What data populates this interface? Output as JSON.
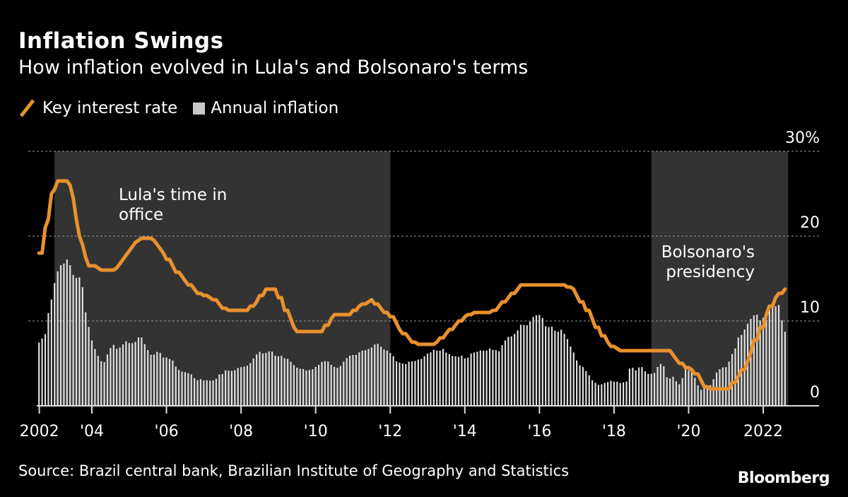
{
  "title": "Inflation Swings",
  "subtitle": "How inflation evolved in Lula's and Bolsonaro's terms",
  "source": "Source: Brazil central bank, Brazilian Institute of Geography and Statistics",
  "logo": "Bloomberg",
  "colors": {
    "background": "#000000",
    "rate_line": "#e8912d",
    "inflation_bars": "#e0e0e0",
    "shading": "#333333"
  },
  "chart_data": {
    "type": "bar+line",
    "title": "Inflation Swings",
    "subtitle": "How inflation evolved in Lula's and Bolsonaro's terms",
    "legend": {
      "placement": "top-left",
      "items": [
        "Key interest rate",
        "Annual inflation"
      ]
    },
    "x_tick_labels": [
      {
        "label": "2002",
        "year": 2002.59
      },
      {
        "label": "'04",
        "year": 2004
      },
      {
        "label": "'06",
        "year": 2006
      },
      {
        "label": "'08",
        "year": 2008
      },
      {
        "label": "'10",
        "year": 2010
      },
      {
        "label": "'12",
        "year": 2012
      },
      {
        "label": "'14",
        "year": 2014
      },
      {
        "label": "'16",
        "year": 2016
      },
      {
        "label": "'18",
        "year": 2018
      },
      {
        "label": "'20",
        "year": 2020
      },
      {
        "label": "2022",
        "year": 2022
      }
    ],
    "y_ticks": [
      {
        "value": 0,
        "label": "0"
      },
      {
        "value": 10,
        "label": "10"
      },
      {
        "value": 20,
        "label": "20"
      },
      {
        "value": 30,
        "label": "30%"
      }
    ],
    "ylim": [
      0,
      30
    ],
    "y_axis_side": "right",
    "grid": "horizontal dashed",
    "shaded_periods": [
      {
        "label_line1": "Lula's time in",
        "label_line2": "office",
        "start": "2003-01",
        "end": "2012-01"
      },
      {
        "label_line1": "Bolsonaro's",
        "label_line2": "presidency",
        "start": "2019-01",
        "end": "2022-09"
      }
    ],
    "dates": [
      "2002-08",
      "2002-09",
      "2002-10",
      "2002-11",
      "2002-12",
      "2003-01",
      "2003-02",
      "2003-03",
      "2003-04",
      "2003-05",
      "2003-06",
      "2003-07",
      "2003-08",
      "2003-09",
      "2003-10",
      "2003-11",
      "2003-12",
      "2004-01",
      "2004-02",
      "2004-03",
      "2004-04",
      "2004-05",
      "2004-06",
      "2004-07",
      "2004-08",
      "2004-09",
      "2004-10",
      "2004-11",
      "2004-12",
      "2005-01",
      "2005-02",
      "2005-03",
      "2005-04",
      "2005-05",
      "2005-06",
      "2005-07",
      "2005-08",
      "2005-09",
      "2005-10",
      "2005-11",
      "2005-12",
      "2006-01",
      "2006-02",
      "2006-03",
      "2006-04",
      "2006-05",
      "2006-06",
      "2006-07",
      "2006-08",
      "2006-09",
      "2006-10",
      "2006-11",
      "2006-12",
      "2007-01",
      "2007-02",
      "2007-03",
      "2007-04",
      "2007-05",
      "2007-06",
      "2007-07",
      "2007-08",
      "2007-09",
      "2007-10",
      "2007-11",
      "2007-12",
      "2008-01",
      "2008-02",
      "2008-03",
      "2008-04",
      "2008-05",
      "2008-06",
      "2008-07",
      "2008-08",
      "2008-09",
      "2008-10",
      "2008-11",
      "2008-12",
      "2009-01",
      "2009-02",
      "2009-03",
      "2009-04",
      "2009-05",
      "2009-06",
      "2009-07",
      "2009-08",
      "2009-09",
      "2009-10",
      "2009-11",
      "2009-12",
      "2010-01",
      "2010-02",
      "2010-03",
      "2010-04",
      "2010-05",
      "2010-06",
      "2010-07",
      "2010-08",
      "2010-09",
      "2010-10",
      "2010-11",
      "2010-12",
      "2011-01",
      "2011-02",
      "2011-03",
      "2011-04",
      "2011-05",
      "2011-06",
      "2011-07",
      "2011-08",
      "2011-09",
      "2011-10",
      "2011-11",
      "2011-12",
      "2012-01",
      "2012-02",
      "2012-03",
      "2012-04",
      "2012-05",
      "2012-06",
      "2012-07",
      "2012-08",
      "2012-09",
      "2012-10",
      "2012-11",
      "2012-12",
      "2013-01",
      "2013-02",
      "2013-03",
      "2013-04",
      "2013-05",
      "2013-06",
      "2013-07",
      "2013-08",
      "2013-09",
      "2013-10",
      "2013-11",
      "2013-12",
      "2014-01",
      "2014-02",
      "2014-03",
      "2014-04",
      "2014-05",
      "2014-06",
      "2014-07",
      "2014-08",
      "2014-09",
      "2014-10",
      "2014-11",
      "2014-12",
      "2015-01",
      "2015-02",
      "2015-03",
      "2015-04",
      "2015-05",
      "2015-06",
      "2015-07",
      "2015-08",
      "2015-09",
      "2015-10",
      "2015-11",
      "2015-12",
      "2016-01",
      "2016-02",
      "2016-03",
      "2016-04",
      "2016-05",
      "2016-06",
      "2016-07",
      "2016-08",
      "2016-09",
      "2016-10",
      "2016-11",
      "2016-12",
      "2017-01",
      "2017-02",
      "2017-03",
      "2017-04",
      "2017-05",
      "2017-06",
      "2017-07",
      "2017-08",
      "2017-09",
      "2017-10",
      "2017-11",
      "2017-12",
      "2018-01",
      "2018-02",
      "2018-03",
      "2018-04",
      "2018-05",
      "2018-06",
      "2018-07",
      "2018-08",
      "2018-09",
      "2018-10",
      "2018-11",
      "2018-12",
      "2019-01",
      "2019-02",
      "2019-03",
      "2019-04",
      "2019-05",
      "2019-06",
      "2019-07",
      "2019-08",
      "2019-09",
      "2019-10",
      "2019-11",
      "2019-12",
      "2020-01",
      "2020-02",
      "2020-03",
      "2020-04",
      "2020-05",
      "2020-06",
      "2020-07",
      "2020-08",
      "2020-09",
      "2020-10",
      "2020-11",
      "2020-12",
      "2021-01",
      "2021-02",
      "2021-03",
      "2021-04",
      "2021-05",
      "2021-06",
      "2021-07",
      "2021-08",
      "2021-09",
      "2021-10",
      "2021-11",
      "2021-12",
      "2022-01",
      "2022-02",
      "2022-03",
      "2022-04",
      "2022-05",
      "2022-06",
      "2022-07",
      "2022-08"
    ],
    "series": [
      {
        "name": "Key interest rate",
        "type": "line",
        "values": [
          18,
          18,
          21,
          22,
          25,
          25.5,
          26.5,
          26.5,
          26.5,
          26.5,
          26,
          24.5,
          22,
          20,
          19,
          17.5,
          16.5,
          16.5,
          16.5,
          16.25,
          16,
          16,
          16,
          16,
          16,
          16.25,
          16.75,
          17.25,
          17.75,
          18.25,
          18.75,
          19.25,
          19.5,
          19.75,
          19.75,
          19.75,
          19.75,
          19.5,
          19,
          18.5,
          18,
          17.25,
          17.25,
          16.5,
          15.75,
          15.75,
          15.25,
          14.75,
          14.25,
          14.25,
          13.75,
          13.25,
          13.25,
          13,
          13,
          12.75,
          12.5,
          12.5,
          12,
          11.5,
          11.5,
          11.25,
          11.25,
          11.25,
          11.25,
          11.25,
          11.25,
          11.25,
          11.75,
          11.75,
          12.25,
          13,
          13,
          13.75,
          13.75,
          13.75,
          13.75,
          12.75,
          12.75,
          11.25,
          11.25,
          10.25,
          9.25,
          8.75,
          8.75,
          8.75,
          8.75,
          8.75,
          8.75,
          8.75,
          8.75,
          8.75,
          9.5,
          9.5,
          10.25,
          10.75,
          10.75,
          10.75,
          10.75,
          10.75,
          10.75,
          11.25,
          11.25,
          11.75,
          12,
          12,
          12.25,
          12.5,
          12,
          12,
          11.5,
          11,
          11,
          10.5,
          10.5,
          9.75,
          9,
          8.5,
          8.5,
          8,
          7.5,
          7.5,
          7.25,
          7.25,
          7.25,
          7.25,
          7.25,
          7.25,
          7.5,
          8,
          8,
          8.5,
          9,
          9,
          9.5,
          10,
          10,
          10.5,
          10.75,
          10.75,
          11,
          11,
          11,
          11,
          11,
          11,
          11.25,
          11.25,
          11.75,
          12.25,
          12.25,
          12.75,
          13.25,
          13.25,
          13.75,
          14.25,
          14.25,
          14.25,
          14.25,
          14.25,
          14.25,
          14.25,
          14.25,
          14.25,
          14.25,
          14.25,
          14.25,
          14.25,
          14.25,
          14.25,
          14,
          14,
          13.75,
          13,
          12.25,
          12.25,
          11.25,
          11.25,
          10.25,
          9.25,
          9.25,
          8.25,
          8.25,
          7.5,
          7,
          7,
          6.75,
          6.5,
          6.5,
          6.5,
          6.5,
          6.5,
          6.5,
          6.5,
          6.5,
          6.5,
          6.5,
          6.5,
          6.5,
          6.5,
          6.5,
          6.5,
          6.5,
          6.5,
          6,
          5.5,
          5,
          5,
          4.5,
          4.5,
          4.25,
          3.75,
          3.75,
          3,
          2.25,
          2.25,
          2,
          2,
          2,
          2,
          2,
          2,
          2,
          2.75,
          2.75,
          3.5,
          4.25,
          4.25,
          5.25,
          6.25,
          7.75,
          7.75,
          9.25,
          9.25,
          10.75,
          11.75,
          11.75,
          12.75,
          13.25,
          13.25,
          13.75
        ]
      },
      {
        "name": "Annual inflation",
        "type": "bar",
        "values": [
          7.46,
          7.93,
          8.45,
          10.93,
          12.53,
          14.47,
          15.85,
          16.57,
          16.77,
          17.24,
          16.57,
          15.43,
          15.07,
          15.14,
          13.98,
          11.02,
          9.3,
          7.71,
          6.69,
          5.89,
          5.26,
          5.15,
          6.06,
          6.81,
          7.18,
          6.71,
          6.86,
          7.24,
          7.6,
          7.41,
          7.39,
          7.54,
          8.07,
          8.05,
          7.27,
          6.57,
          6.02,
          6.04,
          6.36,
          6.22,
          5.69,
          5.7,
          5.51,
          5.32,
          4.63,
          4.23,
          4.03,
          3.97,
          3.84,
          3.7,
          3.26,
          3.02,
          3.14,
          2.99,
          3.02,
          2.96,
          3.0,
          3.18,
          3.69,
          3.74,
          4.18,
          4.15,
          4.12,
          4.19,
          4.46,
          4.56,
          4.61,
          4.73,
          5.04,
          5.58,
          6.06,
          6.37,
          6.17,
          6.25,
          6.41,
          6.39,
          5.9,
          5.84,
          5.9,
          5.61,
          5.53,
          5.2,
          4.8,
          4.5,
          4.36,
          4.34,
          4.17,
          4.22,
          4.31,
          4.59,
          4.83,
          5.17,
          5.26,
          5.22,
          4.84,
          4.6,
          4.49,
          4.7,
          5.2,
          5.63,
          5.91,
          5.99,
          6.01,
          6.3,
          6.51,
          6.55,
          6.71,
          6.87,
          7.23,
          7.31,
          6.97,
          6.64,
          6.5,
          6.22,
          5.85,
          5.24,
          5.1,
          4.99,
          4.92,
          5.2,
          5.24,
          5.28,
          5.45,
          5.53,
          5.84,
          6.15,
          6.31,
          6.59,
          6.49,
          6.5,
          6.7,
          6.27,
          6.09,
          5.86,
          5.84,
          5.77,
          5.91,
          5.59,
          5.68,
          6.15,
          6.28,
          6.37,
          6.52,
          6.5,
          6.51,
          6.75,
          6.59,
          6.56,
          6.41,
          7.14,
          7.7,
          8.13,
          8.17,
          8.47,
          8.89,
          9.56,
          9.53,
          9.49,
          9.93,
          10.48,
          10.67,
          10.71,
          10.36,
          9.39,
          9.28,
          9.32,
          8.84,
          8.74,
          8.97,
          8.48,
          7.87,
          6.99,
          6.29,
          5.35,
          4.76,
          4.57,
          4.08,
          3.6,
          3.0,
          2.71,
          2.46,
          2.54,
          2.7,
          2.8,
          2.95,
          2.86,
          2.84,
          2.68,
          2.76,
          2.86,
          4.39,
          4.48,
          4.19,
          4.53,
          4.56,
          4.05,
          3.75,
          3.78,
          3.89,
          4.58,
          4.94,
          4.66,
          3.37,
          3.22,
          3.43,
          2.89,
          2.54,
          3.27,
          4.31,
          4.19,
          4.01,
          3.3,
          2.4,
          1.88,
          2.13,
          2.31,
          2.44,
          3.14,
          3.92,
          4.31,
          4.52,
          4.56,
          5.2,
          6.1,
          6.76,
          8.06,
          8.35,
          8.99,
          9.68,
          10.25,
          10.67,
          10.74,
          10.06,
          10.38,
          10.54,
          11.3,
          12.13,
          11.73,
          11.89,
          10.07,
          8.73
        ]
      }
    ]
  }
}
